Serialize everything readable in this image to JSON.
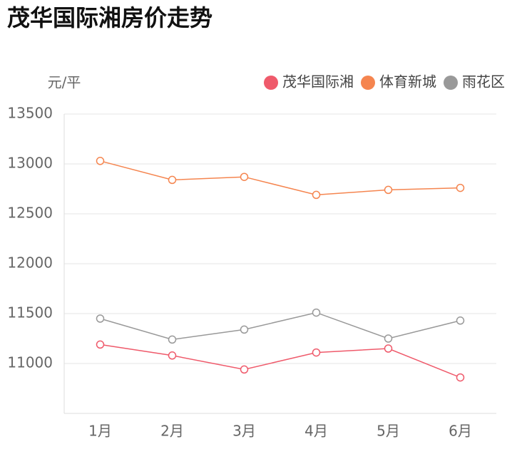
{
  "chart_data": {
    "type": "line",
    "title": "茂华国际湘房价走势",
    "y_label": "元/平",
    "categories": [
      "1月",
      "2月",
      "3月",
      "4月",
      "5月",
      "6月"
    ],
    "series": [
      {
        "name": "茂华国际湘",
        "color": "#ef5a6b",
        "values": [
          11190,
          11080,
          10940,
          11110,
          11150,
          10860
        ]
      },
      {
        "name": "体育新城",
        "color": "#f5854f",
        "values": [
          13030,
          12840,
          12870,
          12690,
          12740,
          12760
        ]
      },
      {
        "name": "雨花区",
        "color": "#999999",
        "values": [
          11450,
          11240,
          11340,
          11510,
          11250,
          11430
        ]
      }
    ],
    "ylim": [
      10500,
      13500
    ],
    "yticks": [
      11000,
      11500,
      12000,
      12500,
      13000,
      13500
    ],
    "grid": true,
    "legend": "top-right"
  }
}
